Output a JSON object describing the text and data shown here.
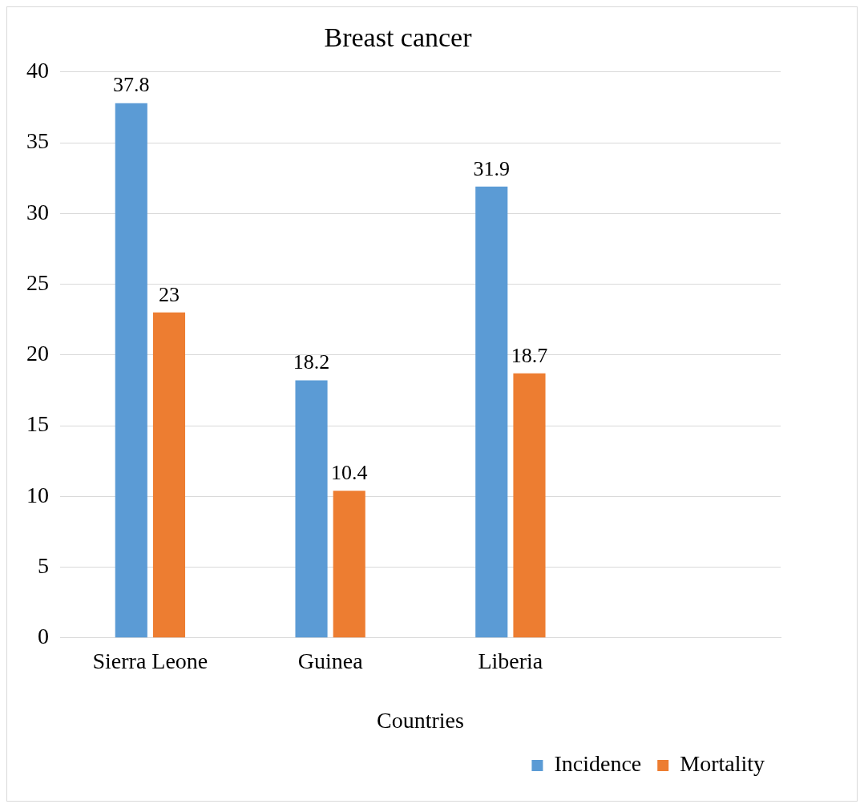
{
  "chart_data": {
    "type": "bar",
    "title": "Breast cancer",
    "xlabel": "Countries",
    "categories": [
      "Sierra Leone",
      "Guinea",
      "Liberia",
      null
    ],
    "series": [
      {
        "name": "Incidence",
        "color": "#5b9bd5",
        "values": [
          37.8,
          18.2,
          31.9,
          null
        ]
      },
      {
        "name": "Mortality",
        "color": "#ed7d31",
        "values": [
          23,
          10.4,
          18.7,
          null
        ]
      }
    ],
    "ylim": [
      0,
      40
    ],
    "yticks": [
      0,
      5,
      10,
      15,
      20,
      25,
      30,
      35,
      40
    ],
    "grid": "y",
    "legend": "bottom right",
    "data_labels": true
  }
}
